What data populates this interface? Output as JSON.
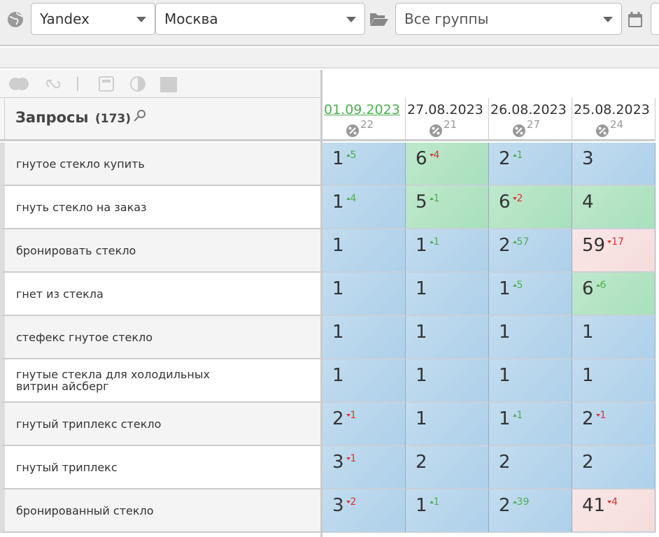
{
  "toolbar": {
    "engine": "Yandex",
    "region": "Москва",
    "group": "Все группы"
  },
  "table": {
    "header": {
      "title": "Запросы",
      "count": "(173)"
    },
    "dates": [
      {
        "date": "01.09.2023",
        "percent": 22
      },
      {
        "date": "27.08.2023",
        "percent": 21
      },
      {
        "date": "26.08.2023",
        "percent": 27
      },
      {
        "date": "25.08.2023",
        "percent": 24
      }
    ],
    "rows": [
      {
        "query": "гнутое стекло купить",
        "cells": [
          {
            "pos": 1,
            "delta": 5,
            "trend": "up"
          },
          {
            "pos": 6,
            "delta": 4,
            "trend": "down"
          },
          {
            "pos": 2,
            "delta": 1,
            "trend": "up"
          },
          {
            "pos": 3
          }
        ]
      },
      {
        "query": "гнуть стекло на заказ",
        "cells": [
          {
            "pos": 1,
            "delta": 4,
            "trend": "up"
          },
          {
            "pos": 5,
            "delta": 1,
            "trend": "up"
          },
          {
            "pos": 6,
            "delta": 2,
            "trend": "down"
          },
          {
            "pos": 4
          }
        ]
      },
      {
        "query": "бронировать стекло",
        "cells": [
          {
            "pos": 1
          },
          {
            "pos": 1,
            "delta": 1,
            "trend": "up"
          },
          {
            "pos": 2,
            "delta": 57,
            "trend": "up"
          },
          {
            "pos": 59,
            "delta": 17,
            "trend": "down"
          }
        ]
      },
      {
        "query": "гнет из стекла",
        "cells": [
          {
            "pos": 1
          },
          {
            "pos": 1
          },
          {
            "pos": 1,
            "delta": 5,
            "trend": "up"
          },
          {
            "pos": 6,
            "delta": 6,
            "trend": "up"
          }
        ]
      },
      {
        "query": "стефекс гнутое стекло",
        "cells": [
          {
            "pos": 1
          },
          {
            "pos": 1
          },
          {
            "pos": 1
          },
          {
            "pos": 1
          }
        ]
      },
      {
        "query": "гнутые стекла для холодильных витрин айсберг",
        "cells": [
          {
            "pos": 1
          },
          {
            "pos": 1
          },
          {
            "pos": 1
          },
          {
            "pos": 1
          }
        ]
      },
      {
        "query": "гнутый триплекс стекло",
        "cells": [
          {
            "pos": 2,
            "delta": 1,
            "trend": "down"
          },
          {
            "pos": 1
          },
          {
            "pos": 1,
            "delta": 1,
            "trend": "up"
          },
          {
            "pos": 2,
            "delta": 1,
            "trend": "down"
          }
        ]
      },
      {
        "query": "гнутый триплекс",
        "cells": [
          {
            "pos": 3,
            "delta": 1,
            "trend": "down"
          },
          {
            "pos": 2
          },
          {
            "pos": 2
          },
          {
            "pos": 2
          }
        ]
      },
      {
        "query": "бронированный стекло",
        "cells": [
          {
            "pos": 3,
            "delta": 2,
            "trend": "down"
          },
          {
            "pos": 1,
            "delta": 1,
            "trend": "up"
          },
          {
            "pos": 2,
            "delta": 39,
            "trend": "up"
          },
          {
            "pos": 41,
            "delta": 4,
            "trend": "down"
          }
        ]
      }
    ]
  }
}
